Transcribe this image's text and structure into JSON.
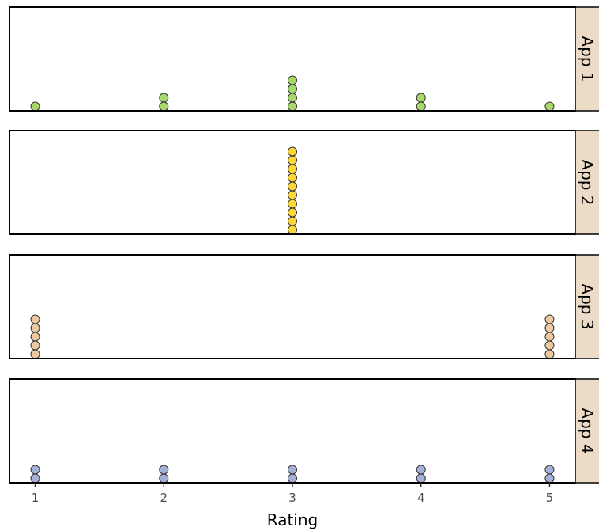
{
  "chart_data": {
    "type": "dotplot",
    "xlabel": "Rating",
    "x_ticks": [
      1,
      2,
      3,
      4,
      5
    ],
    "xlim": [
      0.8,
      5.2
    ],
    "panels": [
      {
        "name": "App 1",
        "color": "#a6d96a",
        "counts": {
          "1": 1,
          "2": 2,
          "3": 4,
          "4": 2,
          "5": 1
        }
      },
      {
        "name": "App 2",
        "color": "#fdd835",
        "counts": {
          "1": 0,
          "2": 0,
          "3": 10,
          "4": 0,
          "5": 0
        }
      },
      {
        "name": "App 3",
        "color": "#ecc9a0",
        "counts": {
          "1": 5,
          "2": 0,
          "3": 0,
          "4": 0,
          "5": 5
        }
      },
      {
        "name": "App 4",
        "color": "#a3b1d6",
        "counts": {
          "1": 2,
          "2": 2,
          "3": 2,
          "4": 2,
          "5": 2
        }
      }
    ]
  }
}
